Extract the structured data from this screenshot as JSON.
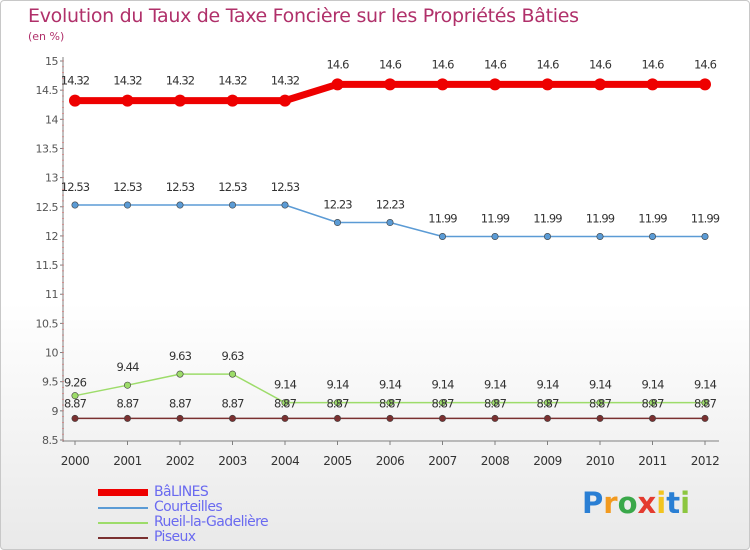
{
  "title": "Evolution du Taux de Taxe Foncière sur les Propriétés Bâties",
  "subtitle": "(en %)",
  "logo": {
    "text": "Proxiti",
    "letters": [
      "P",
      "r",
      "o",
      "x",
      "i",
      "t",
      "i"
    ],
    "colors": [
      "#2a7fd4",
      "#f29a1f",
      "#3aa84a",
      "#e43b2f",
      "#f2c41f",
      "#2a7fd4",
      "#8cc63f"
    ]
  },
  "chart_data": {
    "type": "line",
    "title": "Evolution du Taux de Taxe Foncière sur les Propriétés Bâties",
    "ylabel": "(en %)",
    "xlabel": "",
    "ylim": [
      8.5,
      15
    ],
    "yticks": [
      "8.5",
      "9",
      "9.5",
      "10",
      "10.5",
      "11",
      "11.5",
      "12",
      "12.5",
      "13",
      "13.5",
      "14",
      "14.5",
      "15"
    ],
    "x": [
      "2000",
      "2001",
      "2002",
      "2003",
      "2004",
      "2005",
      "2006",
      "2007",
      "2008",
      "2009",
      "2010",
      "2011",
      "2012"
    ],
    "series": [
      {
        "name": "BâLINES",
        "color": "#ee0000",
        "width": 7,
        "values": [
          14.32,
          14.32,
          14.32,
          14.32,
          14.32,
          14.6,
          14.6,
          14.6,
          14.6,
          14.6,
          14.6,
          14.6,
          14.6
        ],
        "labels": [
          "14.32",
          "14.32",
          "14.32",
          "14.32",
          "14.32",
          "14.6",
          "14.6",
          "14.6",
          "14.6",
          "14.6",
          "14.6",
          "14.6",
          "14.6"
        ]
      },
      {
        "name": "Courteilles",
        "color": "#5b9bd5",
        "width": 1.5,
        "values": [
          12.53,
          12.53,
          12.53,
          12.53,
          12.53,
          12.23,
          12.23,
          11.99,
          11.99,
          11.99,
          11.99,
          11.99,
          11.99
        ],
        "labels": [
          "12.53",
          "12.53",
          "12.53",
          "12.53",
          "12.53",
          "12.23",
          "12.23",
          "11.99",
          "11.99",
          "11.99",
          "11.99",
          "11.99",
          "11.99"
        ]
      },
      {
        "name": "Rueil-la-Gadelière",
        "color": "#9ddc6a",
        "width": 1.5,
        "values": [
          9.26,
          9.44,
          9.63,
          9.63,
          9.14,
          9.14,
          9.14,
          9.14,
          9.14,
          9.14,
          9.14,
          9.14,
          9.14
        ],
        "labels": [
          "9.26",
          "9.44",
          "9.63",
          "9.63",
          "9.14",
          "9.14",
          "9.14",
          "9.14",
          "9.14",
          "9.14",
          "9.14",
          "9.14",
          "9.14"
        ]
      },
      {
        "name": "Piseux",
        "color": "#7a3030",
        "width": 1.5,
        "values": [
          8.87,
          8.87,
          8.87,
          8.87,
          8.87,
          8.87,
          8.87,
          8.87,
          8.87,
          8.87,
          8.87,
          8.87,
          8.87
        ],
        "labels": [
          "8.87",
          "8.87",
          "8.87",
          "8.87",
          "8.87",
          "8.87",
          "8.87",
          "8.87",
          "8.87",
          "8.87",
          "8.87",
          "8.87",
          "8.87"
        ]
      }
    ],
    "grid": false,
    "legend_position": "bottom-left"
  }
}
